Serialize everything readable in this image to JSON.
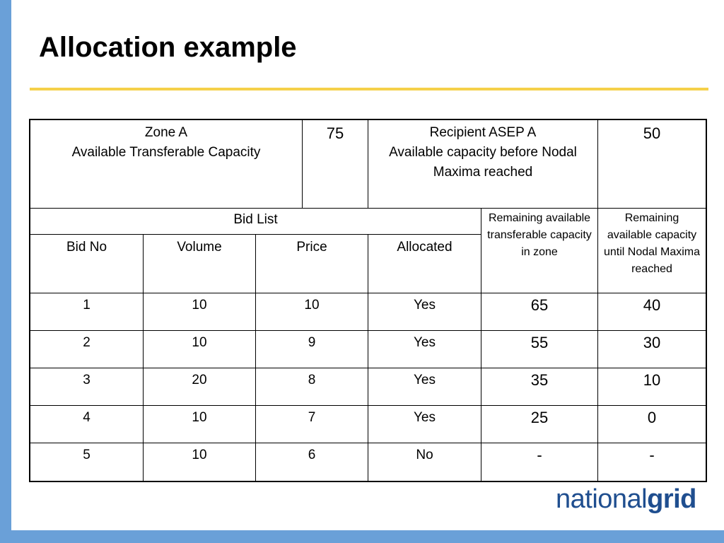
{
  "slide": {
    "title": "Allocation example"
  },
  "table": {
    "zone": {
      "name": "Zone A",
      "label": "Available Transferable Capacity",
      "value": "75"
    },
    "recipient": {
      "name": "Recipient ASEP A",
      "label": "Available capacity before Nodal Maxima reached",
      "value": "50"
    },
    "bid_list_label": "Bid List",
    "headers": {
      "bid_no": "Bid No",
      "volume": "Volume",
      "price": "Price",
      "allocated": "Allocated",
      "remaining_zone": "Remaining available transferable capacity in zone",
      "remaining_nodal": "Remaining available capacity until Nodal Maxima reached"
    },
    "rows": [
      {
        "bid_no": "1",
        "volume": "10",
        "price": "10",
        "allocated": "Yes",
        "remaining_zone": "65",
        "remaining_nodal": "40"
      },
      {
        "bid_no": "2",
        "volume": "10",
        "price": "9",
        "allocated": "Yes",
        "remaining_zone": "55",
        "remaining_nodal": "30"
      },
      {
        "bid_no": "3",
        "volume": "20",
        "price": "8",
        "allocated": "Yes",
        "remaining_zone": "35",
        "remaining_nodal": "10"
      },
      {
        "bid_no": "4",
        "volume": "10",
        "price": "7",
        "allocated": "Yes",
        "remaining_zone": "25",
        "remaining_nodal": "0"
      },
      {
        "bid_no": "5",
        "volume": "10",
        "price": "6",
        "allocated": "No",
        "remaining_zone": "-",
        "remaining_nodal": "-"
      }
    ]
  },
  "logo": {
    "part1": "national",
    "part2": "grid"
  },
  "colors": {
    "accent_blue": "#6aa0d8",
    "rule_yellow": "#f5d04a",
    "logo_blue": "#1f4e8f"
  }
}
